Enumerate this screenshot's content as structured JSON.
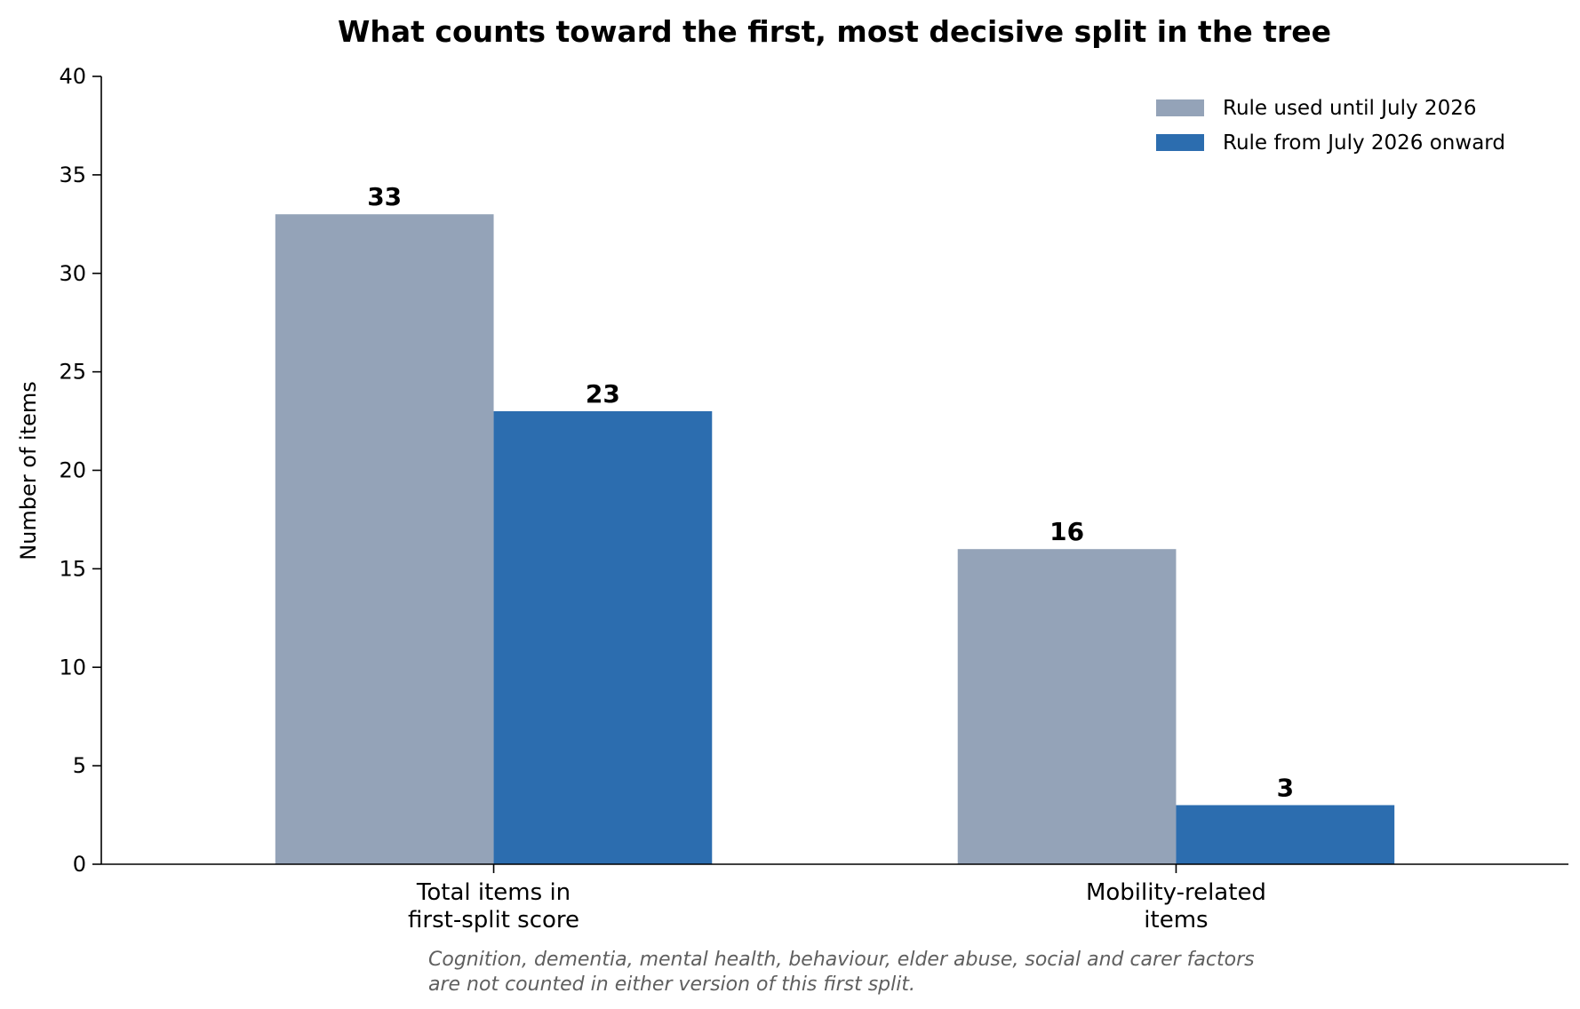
{
  "chart_data": {
    "type": "bar",
    "title": "What counts toward the first, most decisive split in the tree",
    "xlabel": "",
    "ylabel": "Number of items",
    "ylim": [
      0,
      40
    ],
    "yticks": [
      "0",
      "5",
      "10",
      "15",
      "20",
      "25",
      "30",
      "35",
      "40"
    ],
    "categories": [
      [
        "Total items in",
        "first-split score"
      ],
      [
        "Mobility-related",
        "items"
      ]
    ],
    "series": [
      {
        "name": "Rule used until July 2026",
        "color": "#94a3b8",
        "values": [
          33,
          16
        ]
      },
      {
        "name": "Rule from July 2026 onward",
        "color": "#2c6daf",
        "values": [
          23,
          3
        ]
      }
    ],
    "legend_position": "top-right",
    "grid": false,
    "footnote": [
      "Cognition, dementia, mental health, behaviour, elder abuse, social and carer factors",
      "are not counted in either version of this first split."
    ]
  }
}
